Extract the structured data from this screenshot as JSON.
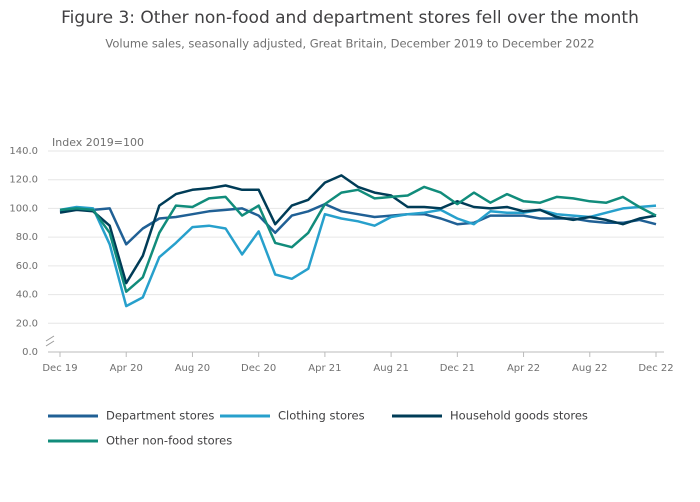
{
  "chart_data": {
    "type": "line",
    "title": "Figure 3: Other non-food and department stores fell over the month",
    "subtitle": "Volume sales, seasonally adjusted, Great Britain, December 2019 to December 2022",
    "y_label": "Index 2019=100",
    "categories": [
      "Dec 19",
      null,
      null,
      null,
      "Apr 20",
      null,
      null,
      null,
      "Aug 20",
      null,
      null,
      null,
      "Dec 20",
      null,
      null,
      null,
      "Apr 21",
      null,
      null,
      null,
      "Aug 21",
      null,
      null,
      null,
      "Dec 21",
      null,
      null,
      null,
      "Apr 22",
      null,
      null,
      null,
      "Aug 22",
      null,
      null,
      null,
      "Dec 22"
    ],
    "ylim": [
      0,
      140
    ],
    "yticks": [
      {
        "value": 0,
        "label": "0.0"
      },
      {
        "value": 20,
        "label": "20.0"
      },
      {
        "value": 40,
        "label": "40.0"
      },
      {
        "value": 60,
        "label": "60.0"
      },
      {
        "value": 80,
        "label": "80.0"
      },
      {
        "value": 100,
        "label": "100.0"
      },
      {
        "value": 120,
        "label": "120.0"
      },
      {
        "value": 140,
        "label": "140.0"
      }
    ],
    "grid": true,
    "legend": "bottom",
    "series": [
      {
        "name": "Department stores",
        "color": "#206095",
        "values": [
          98,
          100,
          99,
          100,
          75,
          86,
          93,
          94,
          96,
          98,
          99,
          100,
          95,
          83,
          95,
          98,
          103,
          98,
          96,
          94,
          95,
          96,
          96,
          93,
          89,
          90,
          95,
          95,
          95,
          93,
          93,
          93,
          91,
          90,
          90,
          92,
          89
        ]
      },
      {
        "name": "Clothing stores",
        "color": "#27a0cc",
        "values": [
          99,
          101,
          100,
          75,
          32,
          38,
          66,
          76,
          87,
          88,
          86,
          68,
          84,
          54,
          51,
          58,
          96,
          93,
          91,
          88,
          94,
          96,
          97,
          99,
          93,
          89,
          98,
          97,
          97,
          99,
          96,
          95,
          94,
          97,
          100,
          101,
          102
        ]
      },
      {
        "name": "Household goods stores",
        "color": "#003c57",
        "values": [
          97,
          99,
          98,
          88,
          48,
          67,
          102,
          110,
          113,
          114,
          116,
          113,
          113,
          89,
          102,
          106,
          118,
          123,
          115,
          111,
          109,
          101,
          101,
          100,
          105,
          101,
          100,
          101,
          98,
          99,
          94,
          92,
          94,
          92,
          89,
          93,
          95
        ]
      },
      {
        "name": "Other non-food stores",
        "color": "#118c7b",
        "values": [
          99,
          100,
          99,
          83,
          42,
          52,
          83,
          102,
          101,
          107,
          108,
          95,
          102,
          76,
          73,
          83,
          103,
          111,
          113,
          107,
          108,
          109,
          115,
          111,
          103,
          111,
          104,
          110,
          105,
          104,
          108,
          107,
          105,
          104,
          108,
          101,
          95
        ]
      }
    ]
  }
}
